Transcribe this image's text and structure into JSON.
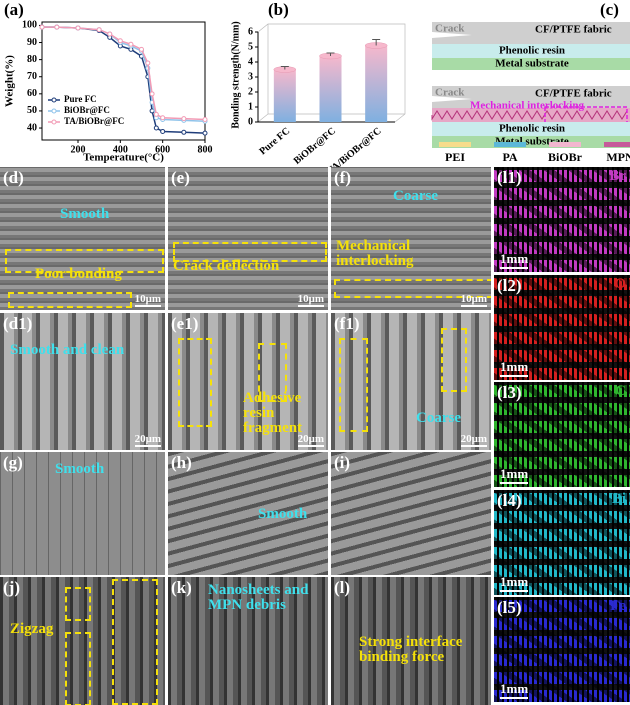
{
  "chart_data": [
    {
      "type": "line",
      "panel": "(a)",
      "x_label": "Temperature(°C)",
      "y_label": "Weight(%)",
      "x": [
        30,
        100,
        200,
        300,
        350,
        400,
        450,
        500,
        530,
        550,
        570,
        600,
        700,
        800
      ],
      "series": [
        {
          "name": "Pure FC",
          "color": "#1f3d7a",
          "values": [
            99,
            99,
            98.5,
            97,
            93,
            88,
            86,
            82,
            70,
            50,
            40,
            38,
            37.5,
            37
          ]
        },
        {
          "name": "BiOBr@FC",
          "color": "#8fc3ea",
          "values": [
            99,
            99,
            98.5,
            97.5,
            95,
            90,
            88,
            85,
            75,
            55,
            46,
            45,
            44.5,
            44
          ]
        },
        {
          "name": "TA/BiOBr@FC",
          "color": "#f29bb5",
          "values": [
            99,
            99,
            98.5,
            97.5,
            95,
            91,
            89,
            86,
            78,
            60,
            48,
            46,
            45.5,
            45
          ]
        }
      ],
      "xlim": [
        30,
        800
      ],
      "ylim": [
        33,
        102
      ],
      "xticks": [
        200,
        400,
        600,
        800
      ],
      "yticks": [
        40,
        50,
        60,
        70,
        80,
        90,
        100
      ],
      "legend": "lower left"
    },
    {
      "type": "bar",
      "panel": "(b)",
      "y_label": "Bonding strength(N/mm)",
      "categories": [
        "Pure FC",
        "BiOBr@FC",
        "TA/BiOBr@FC"
      ],
      "values": [
        3.5,
        4.4,
        5.1
      ],
      "errors": [
        0.2,
        0.2,
        0.4
      ],
      "colors": [
        "#f6b8cc",
        "#7fb0e0"
      ],
      "ylim": [
        0,
        6
      ],
      "yticks": [
        0,
        1,
        2,
        3,
        4,
        5,
        6
      ]
    }
  ],
  "diagram": {
    "panel": "(c)",
    "top": {
      "crack": "Crack",
      "fabric": "CF/PTFE fabric",
      "resin": "Phenolic resin",
      "substrate": "Metal substrate"
    },
    "bottom": {
      "crack": "Crack",
      "fabric": "CF/PTFE fabric",
      "interlock": "Mechanical interlocking",
      "resin": "Phenolic resin",
      "substrate": "Metal substrate"
    },
    "legend": [
      {
        "name": "PEI",
        "color": "#f7dc8c"
      },
      {
        "name": "PA",
        "color": "#5bb8d8"
      },
      {
        "name": "BiOBr",
        "color": "#f2b6cf"
      },
      {
        "name": "MPN",
        "color": "#c65a9a"
      }
    ]
  },
  "micrographs": [
    {
      "label": "(d)",
      "texts": [
        "Smooth",
        "Poor bonding"
      ],
      "scale": "10μm"
    },
    {
      "label": "(e)",
      "texts": [
        "Crack deflection"
      ],
      "scale": "10μm"
    },
    {
      "label": "(f)",
      "texts": [
        "Coarse",
        "Mechanical interlocking"
      ],
      "scale": "10μm"
    },
    {
      "label": "(d1)",
      "texts": [
        "Smooth and clean"
      ],
      "scale": "20μm"
    },
    {
      "label": "(e1)",
      "texts": [
        "Adhesive resin fragment"
      ],
      "scale": "20μm"
    },
    {
      "label": "(f1)",
      "texts": [
        "Coarse"
      ],
      "scale": "20μm"
    },
    {
      "label": "(g)",
      "texts": [
        "Smooth"
      ]
    },
    {
      "label": "(h)",
      "texts": [
        "Smooth"
      ]
    },
    {
      "label": "(i)",
      "texts": []
    },
    {
      "label": "(j)",
      "texts": [
        "Zigzag"
      ]
    },
    {
      "label": "(k)",
      "texts": [
        "Nanosheets and MPN debris"
      ]
    },
    {
      "label": "(l)",
      "texts": [
        "Strong interface binding force"
      ]
    }
  ],
  "maps": [
    {
      "label": "(l1)",
      "element": "Br",
      "scale": "1mm",
      "color": "#c23bc2"
    },
    {
      "label": "(l2)",
      "element": "O",
      "scale": "1mm",
      "color": "#d42020"
    },
    {
      "label": "(l3)",
      "element": "C",
      "scale": "1mm",
      "color": "#2fb52f"
    },
    {
      "label": "(l4)",
      "element": "Bi",
      "scale": "1mm",
      "color": "#22b8c8"
    },
    {
      "label": "(l5)",
      "element": "Fe",
      "scale": "1mm",
      "color": "#2a2ad0"
    }
  ]
}
